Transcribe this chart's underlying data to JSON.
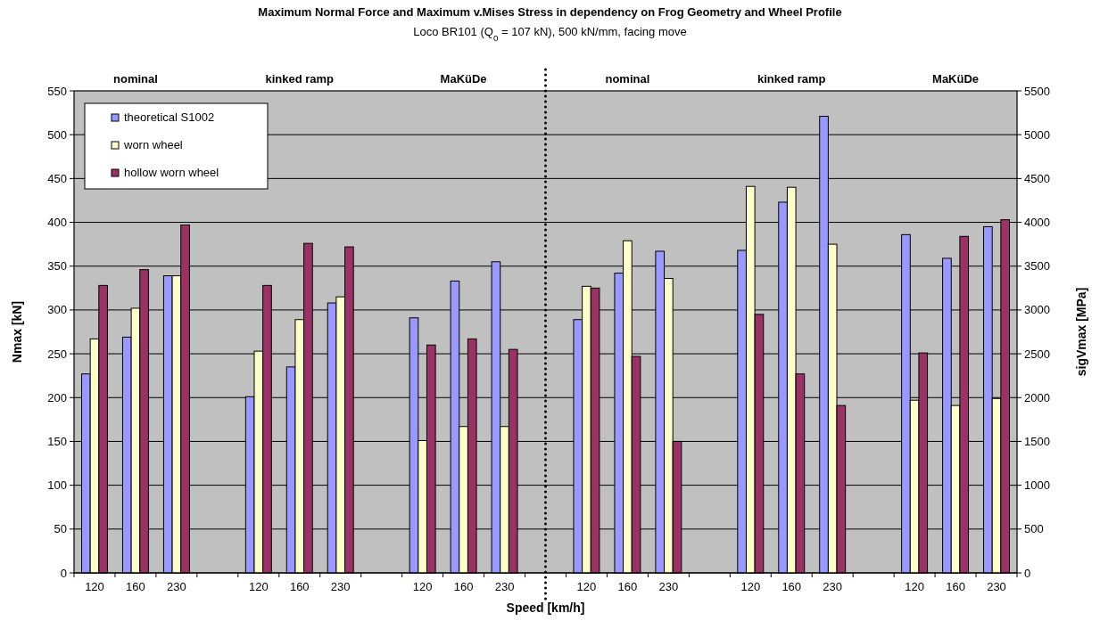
{
  "chart_data": {
    "type": "bar",
    "title": "Maximum Normal Force and Maximum v.Mises Stress in dependency on Frog Geometry and Wheel Profile",
    "subtitle": "Loco BR101 (Q$_{0}$ = 107 kN), 500 kN/mm, facing move",
    "xlabel": "Speed [km/h]",
    "ylabel": "Nmax [kN]",
    "y2label": "sigVmax [MPa]",
    "annotations": [
      "nominal",
      "kinked ramp",
      "MaKüDe",
      "nominal",
      "kinked ramp",
      "MaKüDe"
    ],
    "categories": [
      "120",
      "160",
      "230",
      null,
      "120",
      "160",
      "230",
      null,
      "120",
      "160",
      "230",
      null,
      "120",
      "160",
      "230",
      null,
      "120",
      "160",
      "230",
      null,
      "120",
      "160",
      "230"
    ],
    "series": [
      {
        "name": "theoretical S1002",
        "color": "#9999ff",
        "values": [
          227,
          269,
          339,
          null,
          201,
          235,
          308,
          null,
          291,
          333,
          355,
          null,
          null,
          null,
          null,
          null,
          null,
          null,
          null,
          null,
          null,
          null,
          null
        ]
      },
      {
        "name": "worn wheel",
        "color": "#ffffcc",
        "values": [
          267,
          302,
          339,
          null,
          253,
          289,
          315,
          null,
          151,
          167,
          167,
          null,
          null,
          null,
          null,
          null,
          null,
          null,
          null,
          null,
          null,
          null,
          null
        ]
      },
      {
        "name": "hollow worn wheel",
        "color": "#993366",
        "values": [
          328,
          346,
          397,
          null,
          328,
          376,
          372,
          null,
          260,
          267,
          255,
          null,
          null,
          null,
          null,
          null,
          null,
          null,
          null,
          null,
          null,
          null,
          null
        ]
      },
      {
        "color": "#9999ff",
        "axis": "y2",
        "values": [
          null,
          null,
          null,
          null,
          null,
          null,
          null,
          null,
          null,
          null,
          null,
          null,
          2890,
          3420,
          3670,
          null,
          3680,
          4230,
          5210,
          null,
          3860,
          3590,
          3950
        ]
      },
      {
        "color": "#ffffcc",
        "axis": "y2",
        "values": [
          null,
          null,
          null,
          null,
          null,
          null,
          null,
          null,
          null,
          null,
          null,
          null,
          3270,
          3790,
          3360,
          null,
          4410,
          4400,
          3750,
          null,
          1970,
          1910,
          1990
        ]
      },
      {
        "color": "#993366",
        "axis": "y2",
        "values": [
          null,
          null,
          null,
          null,
          null,
          null,
          null,
          null,
          null,
          null,
          null,
          null,
          3250,
          2470,
          1500,
          null,
          2950,
          2270,
          1910,
          null,
          2510,
          3840,
          4030
        ]
      }
    ],
    "ylim": [
      0,
      550
    ],
    "yticks": [
      0,
      50,
      100,
      150,
      200,
      250,
      300,
      350,
      400,
      450,
      500,
      550
    ],
    "y2lim": [
      0,
      5500
    ],
    "y2ticks": [
      0,
      500,
      1000,
      1500,
      2000,
      2500,
      3000,
      3500,
      4000,
      4500,
      5000,
      5500
    ],
    "grid": "y",
    "legend": "top left"
  }
}
